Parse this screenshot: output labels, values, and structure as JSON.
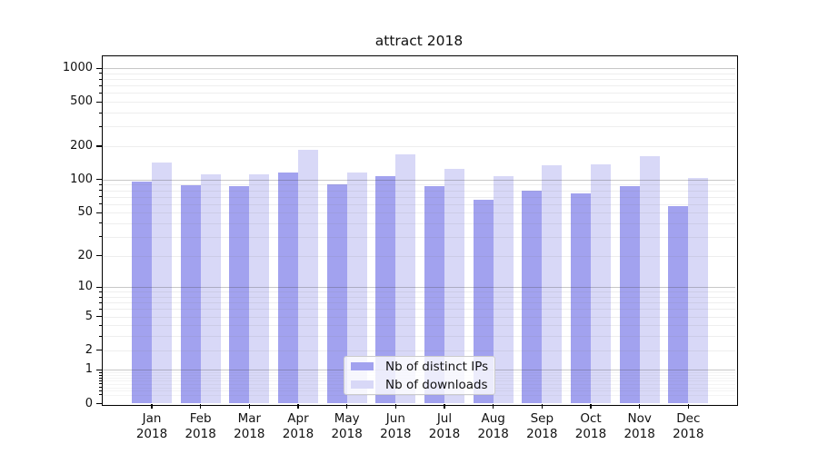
{
  "title": "attract 2018",
  "colors": {
    "ips_bar": "#a2a2ef",
    "downloads_bar": "#d8d8f7",
    "grid_major": "#b9b9b9",
    "grid_minor": "#ededed",
    "spine": "#000000",
    "text": "#111111",
    "legend_border": "#cccccc"
  },
  "chart_data": {
    "type": "bar",
    "title": "attract 2018",
    "categories": [
      "Jan",
      "Feb",
      "Mar",
      "Apr",
      "May",
      "Jun",
      "Jul",
      "Aug",
      "Sep",
      "Oct",
      "Nov",
      "Dec"
    ],
    "x_year_label": "2018",
    "series": [
      {
        "name": "Nb of distinct IPs",
        "color": "#a2a2ef",
        "values": [
          95,
          89,
          87,
          116,
          90,
          108,
          88,
          66,
          80,
          75,
          87,
          57
        ]
      },
      {
        "name": "Nb of downloads",
        "color": "#d8d8f7",
        "values": [
          142,
          111,
          111,
          186,
          115,
          169,
          125,
          108,
          134,
          137,
          164,
          104
        ]
      }
    ],
    "y_scale": "log1p",
    "y_ticks": [
      0,
      1,
      2,
      5,
      10,
      20,
      50,
      100,
      200,
      500,
      1000
    ],
    "ylim": [
      0,
      1280
    ],
    "grid": "major horizontal lines at 1, 10, 100, 1000; faint minor lines at 2-9 per decade; drawn over bars",
    "legend_position": "lower center",
    "xlabel": "",
    "ylabel": ""
  }
}
